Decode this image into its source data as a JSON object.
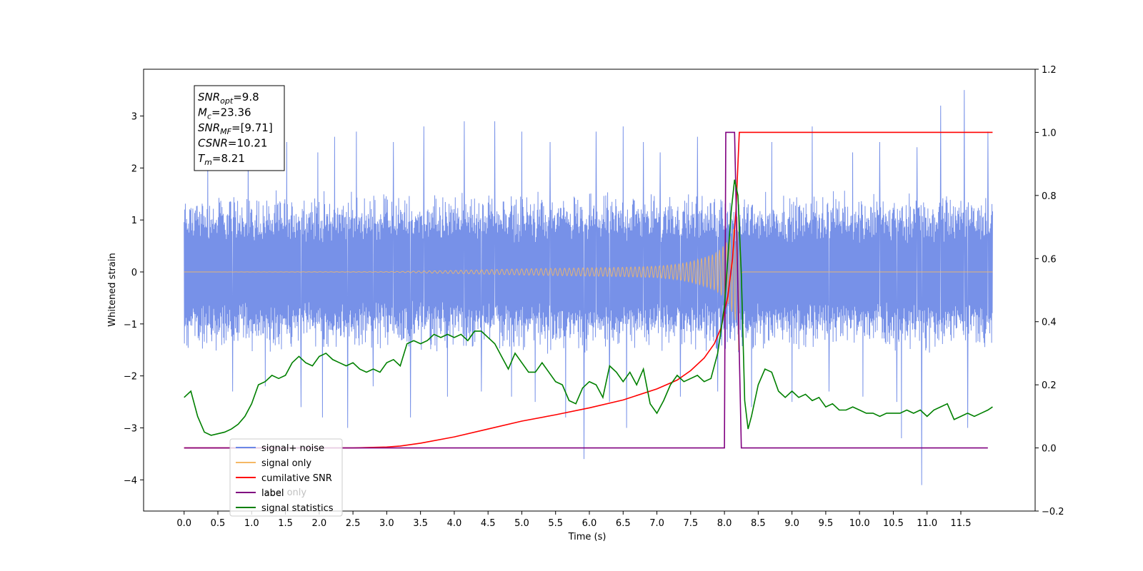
{
  "chart_data": {
    "type": "line",
    "xlabel": "Time (s)",
    "ylabel": "Whitened strain",
    "xlim": [
      -0.6,
      12.6
    ],
    "ylim": [
      -4.6,
      3.9
    ],
    "ylim_right": [
      -0.2,
      1.2
    ],
    "xticks": [
      "0.0",
      "0.5",
      "1.0",
      "1.5",
      "2.0",
      "2.5",
      "3.0",
      "3.5",
      "4.0",
      "4.5",
      "5.0",
      "5.5",
      "6.0",
      "6.5",
      "7.0",
      "7.5",
      "8.0",
      "8.5",
      "9.0",
      "9.5",
      "10.0",
      "10.5",
      "11.0",
      "11.5"
    ],
    "yticks_left": [
      "3",
      "2",
      "1",
      "0",
      "−1",
      "−2",
      "−3",
      "−4"
    ],
    "yticks_right": [
      "1.2",
      "1.0",
      "0.8",
      "0.6",
      "0.4",
      "0.2",
      "0.0",
      "−0.2"
    ],
    "infobox": [
      {
        "base": "SNR",
        "sub": "opt",
        "value": "=9.8"
      },
      {
        "base": "M",
        "sub": "c",
        "value": "=23.36"
      },
      {
        "base": "SNR",
        "sub": "MF",
        "value": "=[9.71]"
      },
      {
        "base": "CSNR",
        "sub": "",
        "value": "=10.21"
      },
      {
        "base": "T",
        "sub": "m",
        "value": "=8.21"
      }
    ],
    "legend_position": "lower-left",
    "legend": [
      "signal+ noise",
      "signal only",
      "cumilative SNR",
      "label",
      "signal statistics"
    ],
    "legend_overlap_text": "label only",
    "noise": {
      "x_range": [
        0.0,
        11.97
      ],
      "band_pos": [
        1.0,
        1.6
      ],
      "band_neg": [
        -1.0,
        -1.6
      ],
      "spikes": [
        [
          0.35,
          2.2
        ],
        [
          0.72,
          -2.3
        ],
        [
          0.95,
          2.4
        ],
        [
          1.2,
          -2.2
        ],
        [
          1.52,
          2.5
        ],
        [
          1.73,
          -2.6
        ],
        [
          1.98,
          2.3
        ],
        [
          2.05,
          -2.8
        ],
        [
          2.23,
          2.6
        ],
        [
          2.42,
          -3.0
        ],
        [
          2.55,
          2.7
        ],
        [
          2.8,
          -2.2
        ],
        [
          3.1,
          2.5
        ],
        [
          3.35,
          -2.8
        ],
        [
          3.55,
          2.8
        ],
        [
          3.9,
          -2.4
        ],
        [
          4.15,
          2.9
        ],
        [
          4.4,
          -2.3
        ],
        [
          4.6,
          2.9
        ],
        [
          4.85,
          -2.4
        ],
        [
          5.0,
          2.7
        ],
        [
          5.2,
          -2.5
        ],
        [
          5.42,
          2.5
        ],
        [
          5.65,
          -2.8
        ],
        [
          5.92,
          -3.6
        ],
        [
          6.1,
          2.7
        ],
        [
          6.3,
          -2.5
        ],
        [
          6.5,
          2.8
        ],
        [
          6.55,
          -3.0
        ],
        [
          6.8,
          2.5
        ],
        [
          7.05,
          2.3
        ],
        [
          7.35,
          -2.4
        ],
        [
          7.6,
          2.6
        ],
        [
          7.9,
          -2.3
        ],
        [
          8.4,
          -2.6
        ],
        [
          8.7,
          2.5
        ],
        [
          9.0,
          -2.5
        ],
        [
          9.3,
          2.8
        ],
        [
          9.55,
          -2.3
        ],
        [
          9.9,
          2.3
        ],
        [
          10.05,
          -2.4
        ],
        [
          10.3,
          2.5
        ],
        [
          10.55,
          -2.5
        ],
        [
          10.62,
          -3.2
        ],
        [
          10.85,
          2.4
        ],
        [
          10.92,
          -4.1
        ],
        [
          11.2,
          3.2
        ],
        [
          11.55,
          3.5
        ],
        [
          11.6,
          -3.0
        ],
        [
          11.9,
          2.7
        ]
      ]
    },
    "signal_only": {
      "x": [
        0.0,
        3.0,
        4.0,
        5.0,
        6.0,
        6.5,
        7.0,
        7.3,
        7.5,
        7.7,
        7.85,
        7.95,
        8.05,
        8.12,
        8.18,
        8.21,
        8.24,
        8.28,
        11.97
      ],
      "y": [
        0.0,
        0.005,
        0.03,
        0.06,
        0.08,
        0.09,
        0.11,
        0.15,
        0.2,
        0.28,
        0.35,
        0.45,
        0.6,
        0.8,
        1.0,
        1.6,
        0.3,
        0.0,
        0.0
      ],
      "period_s": 0.05
    },
    "series": [
      {
        "name": "cumilative SNR",
        "axis": "right",
        "x": [
          0.0,
          2.0,
          2.5,
          3.0,
          3.2,
          3.5,
          4.0,
          4.5,
          5.0,
          5.5,
          6.0,
          6.5,
          7.0,
          7.3,
          7.5,
          7.7,
          7.85,
          7.95,
          8.05,
          8.12,
          8.17,
          8.2,
          8.22,
          8.25,
          11.97
        ],
        "values": [
          0.0,
          0.0,
          0.0,
          0.003,
          0.006,
          0.015,
          0.035,
          0.06,
          0.085,
          0.105,
          0.127,
          0.152,
          0.187,
          0.215,
          0.245,
          0.285,
          0.33,
          0.38,
          0.48,
          0.6,
          0.75,
          0.9,
          1.0,
          1.0,
          1.0
        ]
      },
      {
        "name": "label",
        "axis": "right",
        "x": [
          0.0,
          8.0,
          8.02,
          8.15,
          8.25,
          11.9
        ],
        "values": [
          0.0,
          0.0,
          1.0,
          1.0,
          0.0,
          0.0
        ]
      },
      {
        "name": "signal statistics",
        "axis": "right",
        "x": [
          0.0,
          0.1,
          0.2,
          0.3,
          0.4,
          0.5,
          0.6,
          0.7,
          0.8,
          0.9,
          1.0,
          1.1,
          1.2,
          1.3,
          1.4,
          1.5,
          1.6,
          1.7,
          1.8,
          1.9,
          2.0,
          2.1,
          2.2,
          2.3,
          2.4,
          2.5,
          2.6,
          2.7,
          2.8,
          2.9,
          3.0,
          3.1,
          3.2,
          3.3,
          3.4,
          3.5,
          3.6,
          3.7,
          3.8,
          3.9,
          4.0,
          4.1,
          4.2,
          4.3,
          4.4,
          4.5,
          4.6,
          4.7,
          4.8,
          4.9,
          5.0,
          5.1,
          5.2,
          5.3,
          5.4,
          5.5,
          5.6,
          5.7,
          5.8,
          5.9,
          6.0,
          6.1,
          6.2,
          6.3,
          6.4,
          6.5,
          6.6,
          6.7,
          6.8,
          6.9,
          7.0,
          7.1,
          7.2,
          7.3,
          7.4,
          7.5,
          7.6,
          7.7,
          7.8,
          7.9,
          8.0,
          8.05,
          8.1,
          8.15,
          8.2,
          8.25,
          8.3,
          8.35,
          8.4,
          8.5,
          8.6,
          8.7,
          8.8,
          8.9,
          9.0,
          9.1,
          9.2,
          9.3,
          9.4,
          9.5,
          9.6,
          9.7,
          9.8,
          9.9,
          10.0,
          10.1,
          10.2,
          10.3,
          10.4,
          10.5,
          10.6,
          10.7,
          10.8,
          10.9,
          11.0,
          11.1,
          11.2,
          11.3,
          11.4,
          11.5,
          11.6,
          11.7,
          11.8,
          11.9,
          11.97
        ],
        "values": [
          0.16,
          0.18,
          0.1,
          0.05,
          0.04,
          0.045,
          0.05,
          0.06,
          0.075,
          0.1,
          0.14,
          0.2,
          0.21,
          0.23,
          0.22,
          0.23,
          0.27,
          0.29,
          0.27,
          0.26,
          0.29,
          0.3,
          0.28,
          0.27,
          0.26,
          0.27,
          0.25,
          0.24,
          0.25,
          0.24,
          0.27,
          0.28,
          0.26,
          0.33,
          0.34,
          0.33,
          0.34,
          0.36,
          0.35,
          0.36,
          0.35,
          0.36,
          0.34,
          0.37,
          0.37,
          0.35,
          0.33,
          0.29,
          0.25,
          0.3,
          0.27,
          0.24,
          0.24,
          0.27,
          0.24,
          0.21,
          0.2,
          0.15,
          0.14,
          0.19,
          0.21,
          0.2,
          0.16,
          0.26,
          0.24,
          0.21,
          0.24,
          0.2,
          0.25,
          0.14,
          0.11,
          0.15,
          0.2,
          0.23,
          0.21,
          0.22,
          0.23,
          0.21,
          0.22,
          0.3,
          0.45,
          0.6,
          0.75,
          0.85,
          0.8,
          0.55,
          0.15,
          0.06,
          0.1,
          0.2,
          0.25,
          0.24,
          0.18,
          0.16,
          0.18,
          0.16,
          0.17,
          0.15,
          0.16,
          0.13,
          0.14,
          0.12,
          0.12,
          0.13,
          0.12,
          0.11,
          0.11,
          0.1,
          0.11,
          0.11,
          0.11,
          0.12,
          0.11,
          0.12,
          0.1,
          0.12,
          0.13,
          0.14,
          0.09,
          0.1,
          0.11,
          0.1,
          0.11,
          0.12,
          0.13
        ]
      }
    ],
    "colors": {
      "noise": "#6b88e6",
      "signal": "#f5b865",
      "cumulative": "#ff0000",
      "label": "#800080",
      "statistics": "#008000"
    }
  }
}
